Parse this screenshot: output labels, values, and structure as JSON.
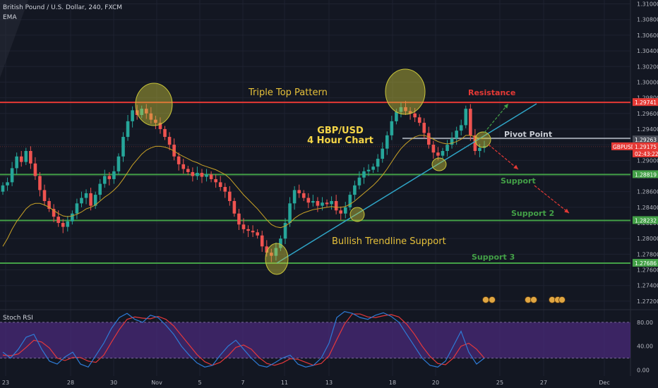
{
  "header": {
    "symbol_line": "British Pound / U.S. Dollar, 240, FXCM",
    "indicator": "EMA"
  },
  "rsi_panel": {
    "title": "Stoch RSI",
    "ticks": [
      "80.00",
      "40.00",
      "0.00"
    ]
  },
  "colors": {
    "background": "#131722",
    "bull": "#26a69a",
    "bear": "#ef5350",
    "resistance": "#e53935",
    "support": "#43a047",
    "ema": "#c9a227",
    "trendline": "#2fa5c7",
    "highlight": "#c9c53a",
    "rsi_k": "#2e7bd6",
    "rsi_d": "#e5383b",
    "rsi_band": "#4a2a7a"
  },
  "annotations": {
    "triple_top": "Triple Top Pattern",
    "resistance": "Resistance",
    "chart_title_1": "GBP/USD",
    "chart_title_2": "4 Hour Chart",
    "pivot": "Pivot Point",
    "support1": "Support",
    "support2": "Support  2",
    "support3": "Support  3",
    "trendline": "Bullish Trendline Support"
  },
  "chart_data": {
    "type": "candlestick",
    "symbol": "GBPUSD",
    "timeframe": "240",
    "x_ticks": [
      "23",
      "28",
      "30",
      "Nov",
      "5",
      "7",
      "11",
      "13",
      "18",
      "20",
      "25",
      "27",
      "Dec"
    ],
    "y_ticks": [
      "1.31000",
      "1.30800",
      "1.30600",
      "1.30400",
      "1.30200",
      "1.30000",
      "1.29800",
      "1.29600",
      "1.29400",
      "1.29200",
      "1.29000",
      "1.28800",
      "1.28600",
      "1.28400",
      "1.28200",
      "1.28000",
      "1.27800",
      "1.27600",
      "1.27400",
      "1.27200"
    ],
    "ylim": [
      1.271,
      1.3105
    ],
    "price_labels": [
      {
        "text": "1.29741",
        "value": 1.29741,
        "color": "#e53935"
      },
      {
        "text": "1.29263",
        "value": 1.29263,
        "color": "#4a4e59"
      },
      {
        "text": "GBPUSD",
        "value": 1.29175,
        "color": "#e53935"
      },
      {
        "text": "1.29175",
        "value": 1.29175,
        "color": "#e53935"
      },
      {
        "text": "02:43:22",
        "value": 1.2906,
        "color": "#e53935"
      },
      {
        "text": "1.28819",
        "value": 1.28819,
        "color": "#43a047"
      },
      {
        "text": "1.28232",
        "value": 1.28232,
        "color": "#43a047"
      },
      {
        "text": "1.27686",
        "value": 1.27686,
        "color": "#43a047"
      }
    ],
    "levels": {
      "resistance": 1.29741,
      "pivot": 1.29263,
      "support1": 1.28819,
      "support2": 1.28232,
      "support3": 1.27686
    },
    "close_path": [
      1.2868,
      1.2872,
      1.289,
      1.2905,
      1.2898,
      1.2912,
      1.2896,
      1.288,
      1.2862,
      1.2848,
      1.2838,
      1.2828,
      1.282,
      1.2815,
      1.2822,
      1.2832,
      1.2845,
      1.2852,
      1.2858,
      1.2842,
      1.2856,
      1.287,
      1.288,
      1.2876,
      1.2886,
      1.2905,
      1.293,
      1.295,
      1.2964,
      1.2958,
      1.2966,
      1.296,
      1.2952,
      1.2948,
      1.294,
      1.293,
      1.292,
      1.2905,
      1.2895,
      1.2889,
      1.2885,
      1.288,
      1.2884,
      1.2879,
      1.2882,
      1.2876,
      1.2872,
      1.2866,
      1.286,
      1.2848,
      1.2832,
      1.2818,
      1.2812,
      1.281,
      1.2808,
      1.2804,
      1.279,
      1.2782,
      1.2778,
      1.2788,
      1.28,
      1.282,
      1.2845,
      1.2862,
      1.2858,
      1.2852,
      1.2846,
      1.2848,
      1.2842,
      1.2846,
      1.2844,
      1.2848,
      1.2836,
      1.2832,
      1.284,
      1.2856,
      1.2868,
      1.2878,
      1.2886,
      1.2888,
      1.2892,
      1.2902,
      1.2915,
      1.2932,
      1.295,
      1.2962,
      1.2968,
      1.2963,
      1.296,
      1.2955,
      1.2948,
      1.2935,
      1.292,
      1.291,
      1.2906,
      1.2912,
      1.292,
      1.2928,
      1.2938,
      1.2945,
      1.2966,
      1.2932,
      1.2912,
      1.2916,
      1.2918
    ],
    "ema_path": [
      1.279,
      1.28,
      1.2812,
      1.2822,
      1.283,
      1.2838,
      1.2843,
      1.2845,
      1.2845,
      1.2843,
      1.284,
      1.2836,
      1.2832,
      1.2829,
      1.2828,
      1.2829,
      1.2831,
      1.2834,
      1.2838,
      1.284,
      1.2843,
      1.2848,
      1.2853,
      1.2857,
      1.2862,
      1.2868,
      1.2876,
      1.2885,
      1.2894,
      1.2901,
      1.2908,
      1.2913,
      1.2916,
      1.2918,
      1.2918,
      1.2917,
      1.2915,
      1.2912,
      1.2908,
      1.2905,
      1.2902,
      1.2899,
      1.2897,
      1.2894,
      1.2892,
      1.289,
      1.2888,
      1.2885,
      1.2882,
      1.2877,
      1.287,
      1.2863,
      1.2856,
      1.285,
      1.2844,
      1.2838,
      1.2831,
      1.2824,
      1.2818,
      1.2815,
      1.2814,
      1.2816,
      1.282,
      1.2826,
      1.283,
      1.2833,
      1.2835,
      1.2837,
      1.2838,
      1.2839,
      1.284,
      1.2841,
      1.284,
      1.284,
      1.2841,
      1.2844,
      1.2848,
      1.2853,
      1.2858,
      1.2863,
      1.2868,
      1.2874,
      1.2881,
      1.2889,
      1.2898,
      1.2907,
      1.2915,
      1.2921,
      1.2926,
      1.293,
      1.2932,
      1.2932,
      1.293,
      1.2927,
      1.2924,
      1.2922,
      1.2921,
      1.2922,
      1.2924,
      1.2927,
      1.2932,
      1.2932,
      1.293,
      1.2928,
      1.2928
    ],
    "stoch_rsi": {
      "ylim": [
        -10,
        100
      ],
      "band": [
        20,
        80
      ],
      "k": [
        30,
        20,
        35,
        55,
        60,
        35,
        15,
        10,
        22,
        30,
        10,
        5,
        25,
        45,
        70,
        88,
        95,
        85,
        80,
        92,
        88,
        75,
        60,
        40,
        25,
        12,
        5,
        8,
        25,
        40,
        50,
        35,
        20,
        8,
        5,
        12,
        20,
        25,
        10,
        5,
        8,
        20,
        45,
        88,
        98,
        95,
        88,
        85,
        92,
        96,
        90,
        80,
        60,
        40,
        20,
        8,
        5,
        15,
        40,
        65,
        30,
        10,
        20
      ],
      "d": [
        25,
        24,
        27,
        38,
        50,
        47,
        37,
        20,
        16,
        21,
        21,
        15,
        13,
        25,
        47,
        68,
        85,
        89,
        87,
        86,
        90,
        85,
        74,
        58,
        42,
        26,
        14,
        8,
        13,
        24,
        38,
        42,
        35,
        21,
        11,
        8,
        12,
        19,
        18,
        13,
        8,
        11,
        24,
        51,
        77,
        94,
        94,
        89,
        88,
        91,
        93,
        89,
        77,
        60,
        40,
        23,
        11,
        9,
        20,
        40,
        45,
        35,
        20
      ]
    }
  }
}
